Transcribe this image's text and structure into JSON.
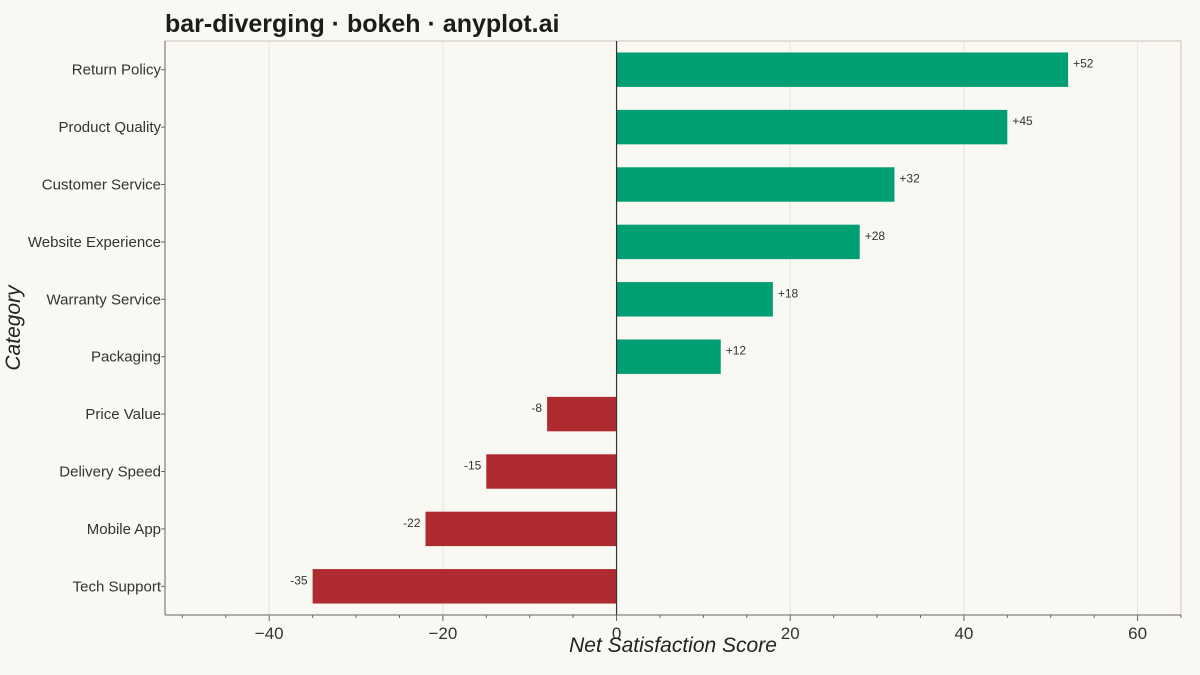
{
  "title": "bar-diverging · bokeh · anyplot.ai",
  "colors": {
    "background": "#faf8f3",
    "positive": "#009e73",
    "negative": "#ae2c30",
    "axis": "#666666",
    "grid": "#e6e4de",
    "zero_line": "#333333"
  },
  "chart_data": {
    "type": "bar",
    "orientation": "horizontal",
    "title": "bar-diverging · bokeh · anyplot.ai",
    "xlabel": "Net Satisfaction Score",
    "ylabel": "Category",
    "xlim": [
      -52,
      65
    ],
    "xticks": [
      -40,
      -20,
      0,
      20,
      40,
      60
    ],
    "xtick_labels": [
      "−40",
      "−20",
      "0",
      "20",
      "40",
      "60"
    ],
    "grid": "vertical",
    "categories": [
      "Return Policy",
      "Product Quality",
      "Customer Service",
      "Website Experience",
      "Warranty Service",
      "Packaging",
      "Price Value",
      "Delivery Speed",
      "Mobile App",
      "Tech Support"
    ],
    "values": [
      52,
      45,
      32,
      28,
      18,
      12,
      -8,
      -15,
      -22,
      -35
    ],
    "value_labels": [
      "+52",
      "+45",
      "+32",
      "+28",
      "+18",
      "+12",
      "-8",
      "-15",
      "-22",
      "-35"
    ]
  }
}
